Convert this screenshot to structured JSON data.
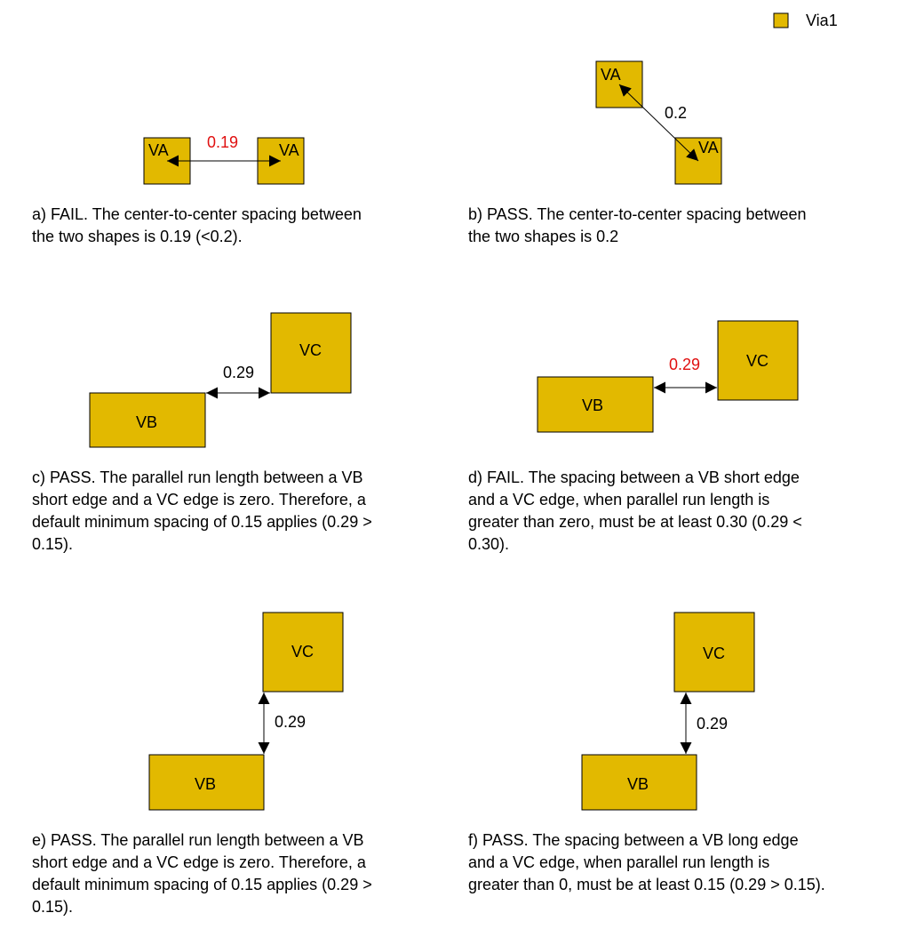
{
  "legend": {
    "label": "Via1",
    "color": "#e2b900"
  },
  "colors": {
    "shape_fill": "#e2b900",
    "fail_dim": "#e01010",
    "pass_dim": "#000000"
  },
  "panels": {
    "a": {
      "shape1": "VA",
      "shape2": "VA",
      "dim": "0.19",
      "caption_l1": "a) FAIL. The center-to-center spacing between",
      "caption_l2": "the two shapes is 0.19 (<0.2)."
    },
    "b": {
      "shape1": "VA",
      "shape2": "VA",
      "dim": "0.2",
      "caption_l1": "b) PASS. The center-to-center spacing between",
      "caption_l2": "the two shapes is 0.2"
    },
    "c": {
      "shape_vb": "VB",
      "shape_vc": "VC",
      "dim": "0.29",
      "caption_l1": "c) PASS. The parallel run length between a VB",
      "caption_l2": "short edge and a VC edge is zero. Therefore, a",
      "caption_l3": "default minimum spacing of 0.15 applies (0.29 >",
      "caption_l4": "0.15)."
    },
    "d": {
      "shape_vb": "VB",
      "shape_vc": "VC",
      "dim": "0.29",
      "caption_l1": "d) FAIL. The spacing between a VB short edge",
      "caption_l2": "and a VC edge, when parallel run length is",
      "caption_l3": "greater than zero, must be at least 0.30 (0.29 <",
      "caption_l4": "0.30)."
    },
    "e": {
      "shape_vb": "VB",
      "shape_vc": "VC",
      "dim": "0.29",
      "caption_l1": "e) PASS. The parallel run length between a VB",
      "caption_l2": "short edge and a VC edge is zero. Therefore, a",
      "caption_l3": "default minimum spacing of 0.15 applies (0.29 >",
      "caption_l4": "0.15)."
    },
    "f": {
      "shape_vb": "VB",
      "shape_vc": "VC",
      "dim": "0.29",
      "caption_l1": "f) PASS. The spacing between a VB long edge",
      "caption_l2": "and a VC edge, when parallel run length is",
      "caption_l3": "greater than 0, must be at least 0.15 (0.29 > 0.15)."
    }
  }
}
